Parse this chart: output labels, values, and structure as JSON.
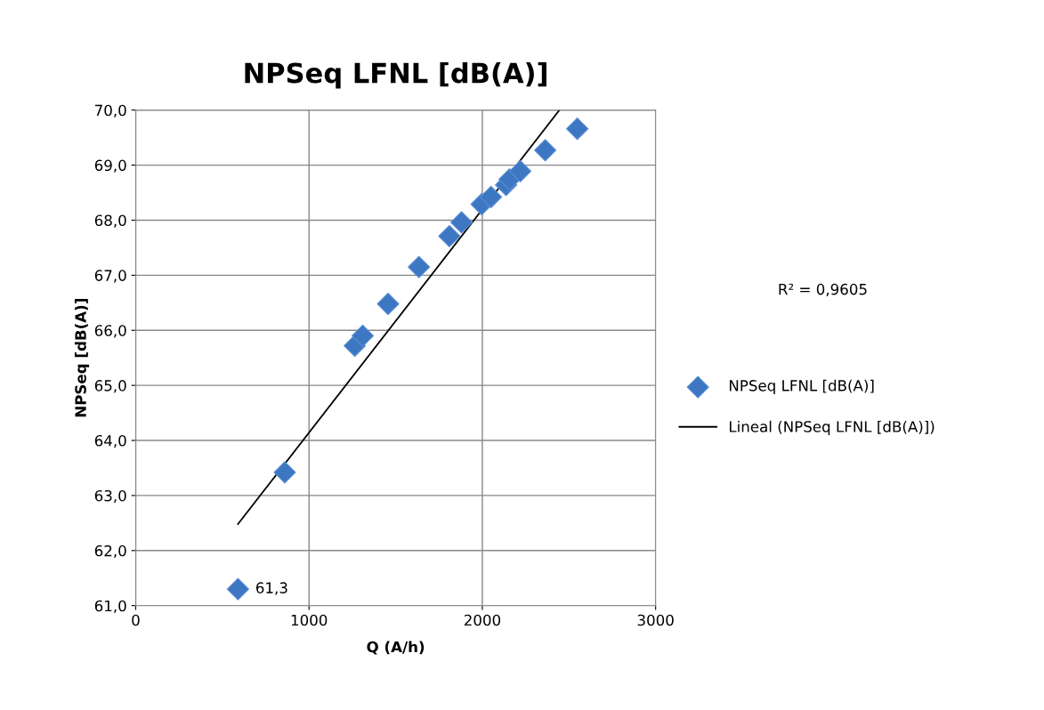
{
  "chart_data": {
    "type": "scatter",
    "title": "NPSeq LFNL [dB(A)]",
    "xlabel": "Q (A/h)",
    "ylabel": "NPSeq [dB(A)]",
    "xlim": [
      0,
      3000
    ],
    "xticks": [
      0,
      1000,
      2000,
      3000
    ],
    "ylim": [
      61,
      70
    ],
    "yticks": [
      {
        "value": 61,
        "label": "61,0"
      },
      {
        "value": 62,
        "label": "62,0"
      },
      {
        "value": 63,
        "label": "63,0"
      },
      {
        "value": 64,
        "label": "64,0"
      },
      {
        "value": 65,
        "label": "65,0"
      },
      {
        "value": 66,
        "label": "66,0"
      },
      {
        "value": 67,
        "label": "67,0"
      },
      {
        "value": 68,
        "label": "68,0"
      },
      {
        "value": 69,
        "label": "69,0"
      },
      {
        "value": 70,
        "label": "70,0"
      }
    ],
    "grid": true,
    "legend": "right",
    "annotations": [
      "R² = 0,9605"
    ],
    "series": [
      {
        "name": "NPSeq LFNL [dB(A)]",
        "color": "#3d76c1",
        "marker": "diamond",
        "x": [
          590,
          860,
          1264,
          1310,
          1456,
          1634,
          1810,
          1880,
          1996,
          2050,
          2137,
          2157,
          2219,
          2363,
          2548
        ],
        "values": [
          61.3,
          63.42,
          65.72,
          65.9,
          66.48,
          67.15,
          67.71,
          67.96,
          68.29,
          68.42,
          68.64,
          68.74,
          68.89,
          69.27,
          69.66
        ],
        "value_labels": [
          "61,3",
          null,
          null,
          null,
          null,
          null,
          null,
          null,
          null,
          null,
          null,
          null,
          null,
          null,
          null
        ]
      },
      {
        "name": "Lineal (NPSeq LFNL [dB(A)])",
        "type": "line",
        "marker": "none",
        "color": "#000000",
        "x": [
          590,
          2445
        ],
        "values": [
          62.48,
          70.0
        ]
      }
    ]
  }
}
